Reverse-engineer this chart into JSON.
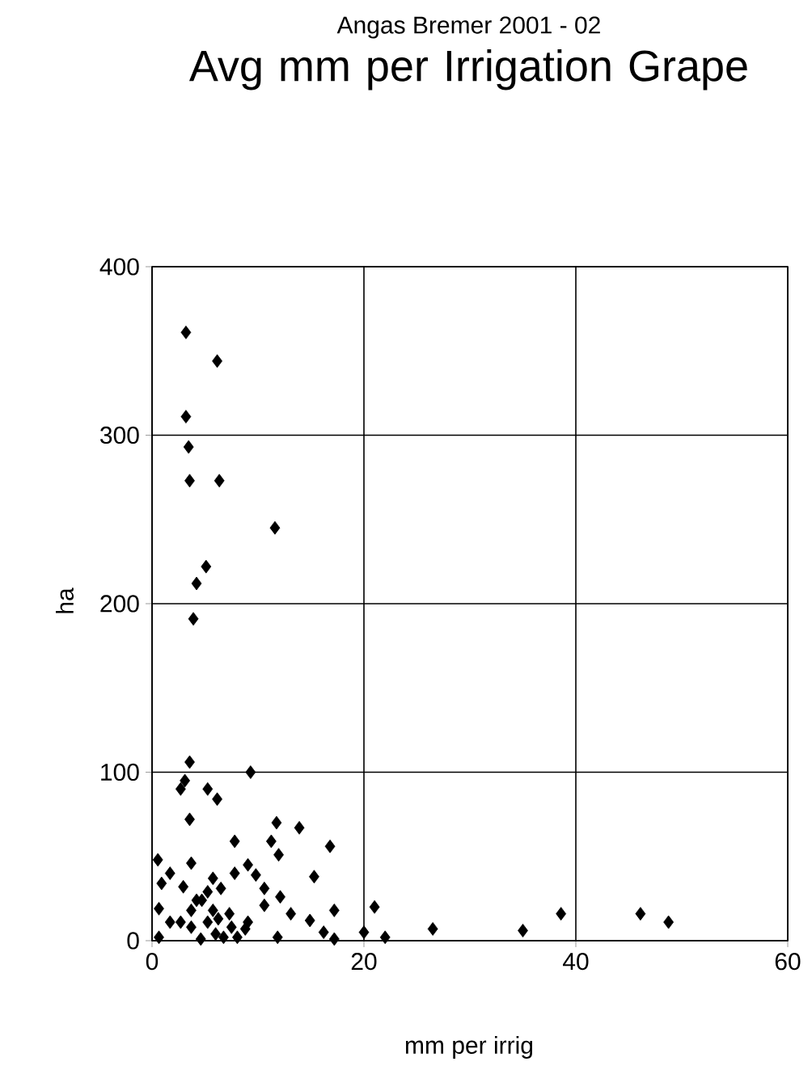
{
  "chart_data": {
    "type": "scatter",
    "subtitle": "Angas Bremer 2001 - 02",
    "title": "Avg mm per Irrigation Grape",
    "xlabel": "mm per irrig",
    "ylabel": "ha",
    "xlim": [
      0,
      60
    ],
    "ylim": [
      0,
      400
    ],
    "xticks": [
      0,
      20,
      40,
      60
    ],
    "yticks": [
      0,
      100,
      200,
      300,
      400
    ],
    "grid": true,
    "marker": "diamond",
    "color": "#000000",
    "x": [
      3.2,
      6.15,
      3.2,
      3.45,
      3.55,
      6.35,
      11.6,
      5.1,
      4.2,
      3.9,
      3.55,
      9.3,
      3.1,
      2.7,
      5.25,
      6.15,
      3.55,
      11.75,
      13.9,
      7.8,
      11.25,
      11.95,
      16.8,
      0.55,
      3.7,
      9.05,
      7.8,
      1.7,
      9.8,
      15.3,
      0.9,
      5.75,
      2.95,
      10.6,
      5.25,
      12.1,
      0.65,
      10.6,
      17.2,
      13.1,
      21.0,
      1.7,
      14.9,
      9.05,
      3.7,
      6.25,
      0.65,
      4.6,
      11.85,
      8.05,
      6.75,
      16.2,
      17.2,
      20.0,
      4.7,
      5.75,
      7.3,
      3.7,
      2.7,
      5.25,
      7.5,
      8.8,
      6.0,
      4.2,
      6.5,
      22.0,
      26.5,
      35.0,
      38.6,
      46.1,
      48.75
    ],
    "values": [
      361,
      344,
      311,
      293,
      273,
      273,
      245,
      222,
      212,
      191,
      106,
      100,
      95,
      90,
      90,
      84,
      72,
      70,
      67,
      59,
      59,
      51,
      56,
      48,
      46,
      45,
      40,
      40,
      39,
      38,
      34,
      37,
      32,
      31,
      29,
      26,
      19,
      21,
      18,
      16,
      20,
      11,
      12,
      11,
      8,
      13,
      2,
      1,
      2,
      2,
      2,
      5,
      1,
      5,
      24,
      18,
      16,
      18,
      11,
      11,
      8,
      7,
      4,
      24,
      31,
      2,
      7,
      6,
      16,
      16,
      11
    ]
  }
}
